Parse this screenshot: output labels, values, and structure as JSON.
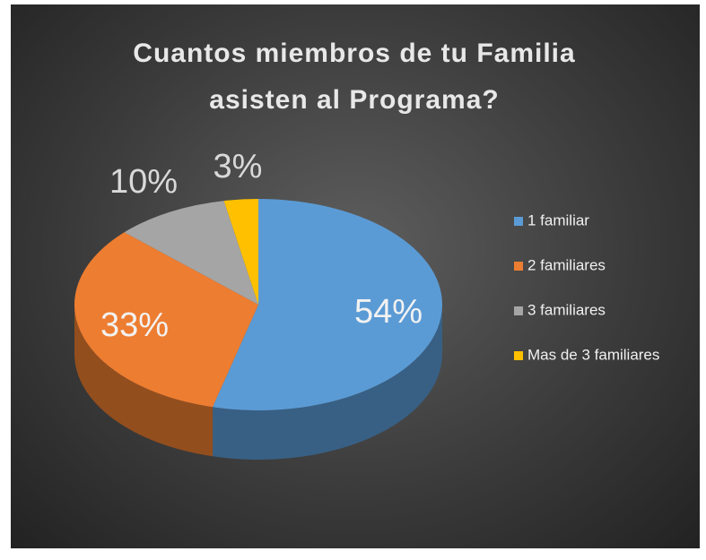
{
  "chart_data": {
    "type": "pie3d",
    "title": "Cuantos miembros de tu Familia asisten al Programa?",
    "categories": [
      "1 familiar",
      "2 familiares",
      "3 familiares",
      "Mas de 3 familiares"
    ],
    "values": [
      54,
      33,
      10,
      3
    ],
    "value_labels": [
      "54%",
      "33%",
      "10%",
      "3%"
    ],
    "colors": [
      "#5b9bd5",
      "#ed7d31",
      "#a5a5a5",
      "#ffc000"
    ],
    "legend": "right"
  }
}
